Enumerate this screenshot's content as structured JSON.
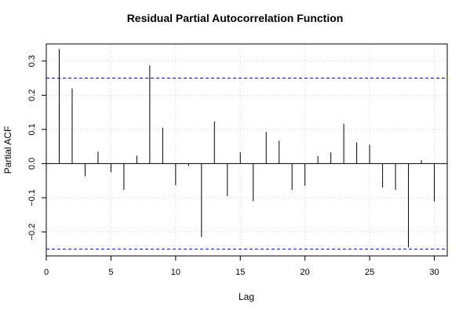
{
  "chart_data": {
    "type": "bar",
    "title": "Residual Partial Autocorrelation Function",
    "xlabel": "Lag",
    "ylabel": "Partial ACF",
    "xlim": [
      0,
      31
    ],
    "ylim": [
      -0.27,
      0.35
    ],
    "x_ticks": [
      0,
      5,
      10,
      15,
      20,
      25,
      30
    ],
    "y_ticks": [
      -0.2,
      -0.1,
      0.0,
      0.1,
      0.2,
      0.3
    ],
    "x_tick_labels": [
      "0",
      "5",
      "10",
      "15",
      "20",
      "25",
      "30"
    ],
    "y_tick_labels": [
      "−0.2",
      "−0.1",
      "0.0",
      "0.1",
      "0.2",
      "0.3"
    ],
    "grid": true,
    "lags": [
      1,
      2,
      3,
      4,
      5,
      6,
      7,
      8,
      9,
      10,
      11,
      12,
      13,
      14,
      15,
      16,
      17,
      18,
      19,
      20,
      21,
      22,
      23,
      24,
      25,
      26,
      27,
      28,
      29,
      30
    ],
    "values": [
      0.335,
      0.22,
      -0.037,
      0.035,
      -0.025,
      -0.077,
      0.023,
      0.287,
      0.105,
      -0.063,
      -0.007,
      -0.215,
      0.123,
      -0.095,
      0.033,
      -0.11,
      0.093,
      0.067,
      -0.077,
      -0.065,
      0.022,
      0.033,
      0.117,
      0.062,
      0.055,
      -0.07,
      -0.077,
      -0.245,
      0.01,
      -0.11
    ],
    "confidence_bounds": [
      0.25,
      -0.25
    ],
    "colors": {
      "bars": "#000000",
      "bounds": "#0000cc",
      "grid": "#d3d3d3"
    }
  }
}
